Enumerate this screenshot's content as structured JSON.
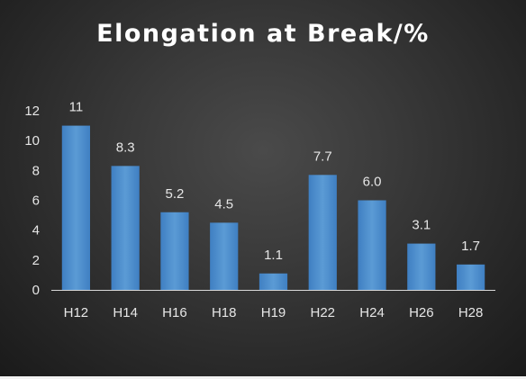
{
  "chart_data": {
    "type": "bar",
    "title": "Elongation at Break/%",
    "xlabel": "",
    "ylabel": "",
    "categories": [
      "H12",
      "H14",
      "H16",
      "H18",
      "H19",
      "H22",
      "H24",
      "H26",
      "H28"
    ],
    "values": [
      11,
      8.3,
      5.2,
      4.5,
      1.1,
      7.7,
      6.0,
      3.1,
      1.7
    ],
    "data_labels": [
      "11",
      "8.3",
      "5.2",
      "4.5",
      "1.1",
      "7.7",
      "6.0",
      "3.1",
      "1.7"
    ],
    "ylim": [
      0,
      12
    ],
    "yticks": [
      0,
      2,
      4,
      6,
      8,
      10,
      12
    ],
    "grid": false,
    "legend": "none",
    "bar_color": "#5b9bd5",
    "bar_color_dark": "#3f7fc2",
    "background_color": "#333333",
    "axis_color": "#d9d9d9"
  }
}
